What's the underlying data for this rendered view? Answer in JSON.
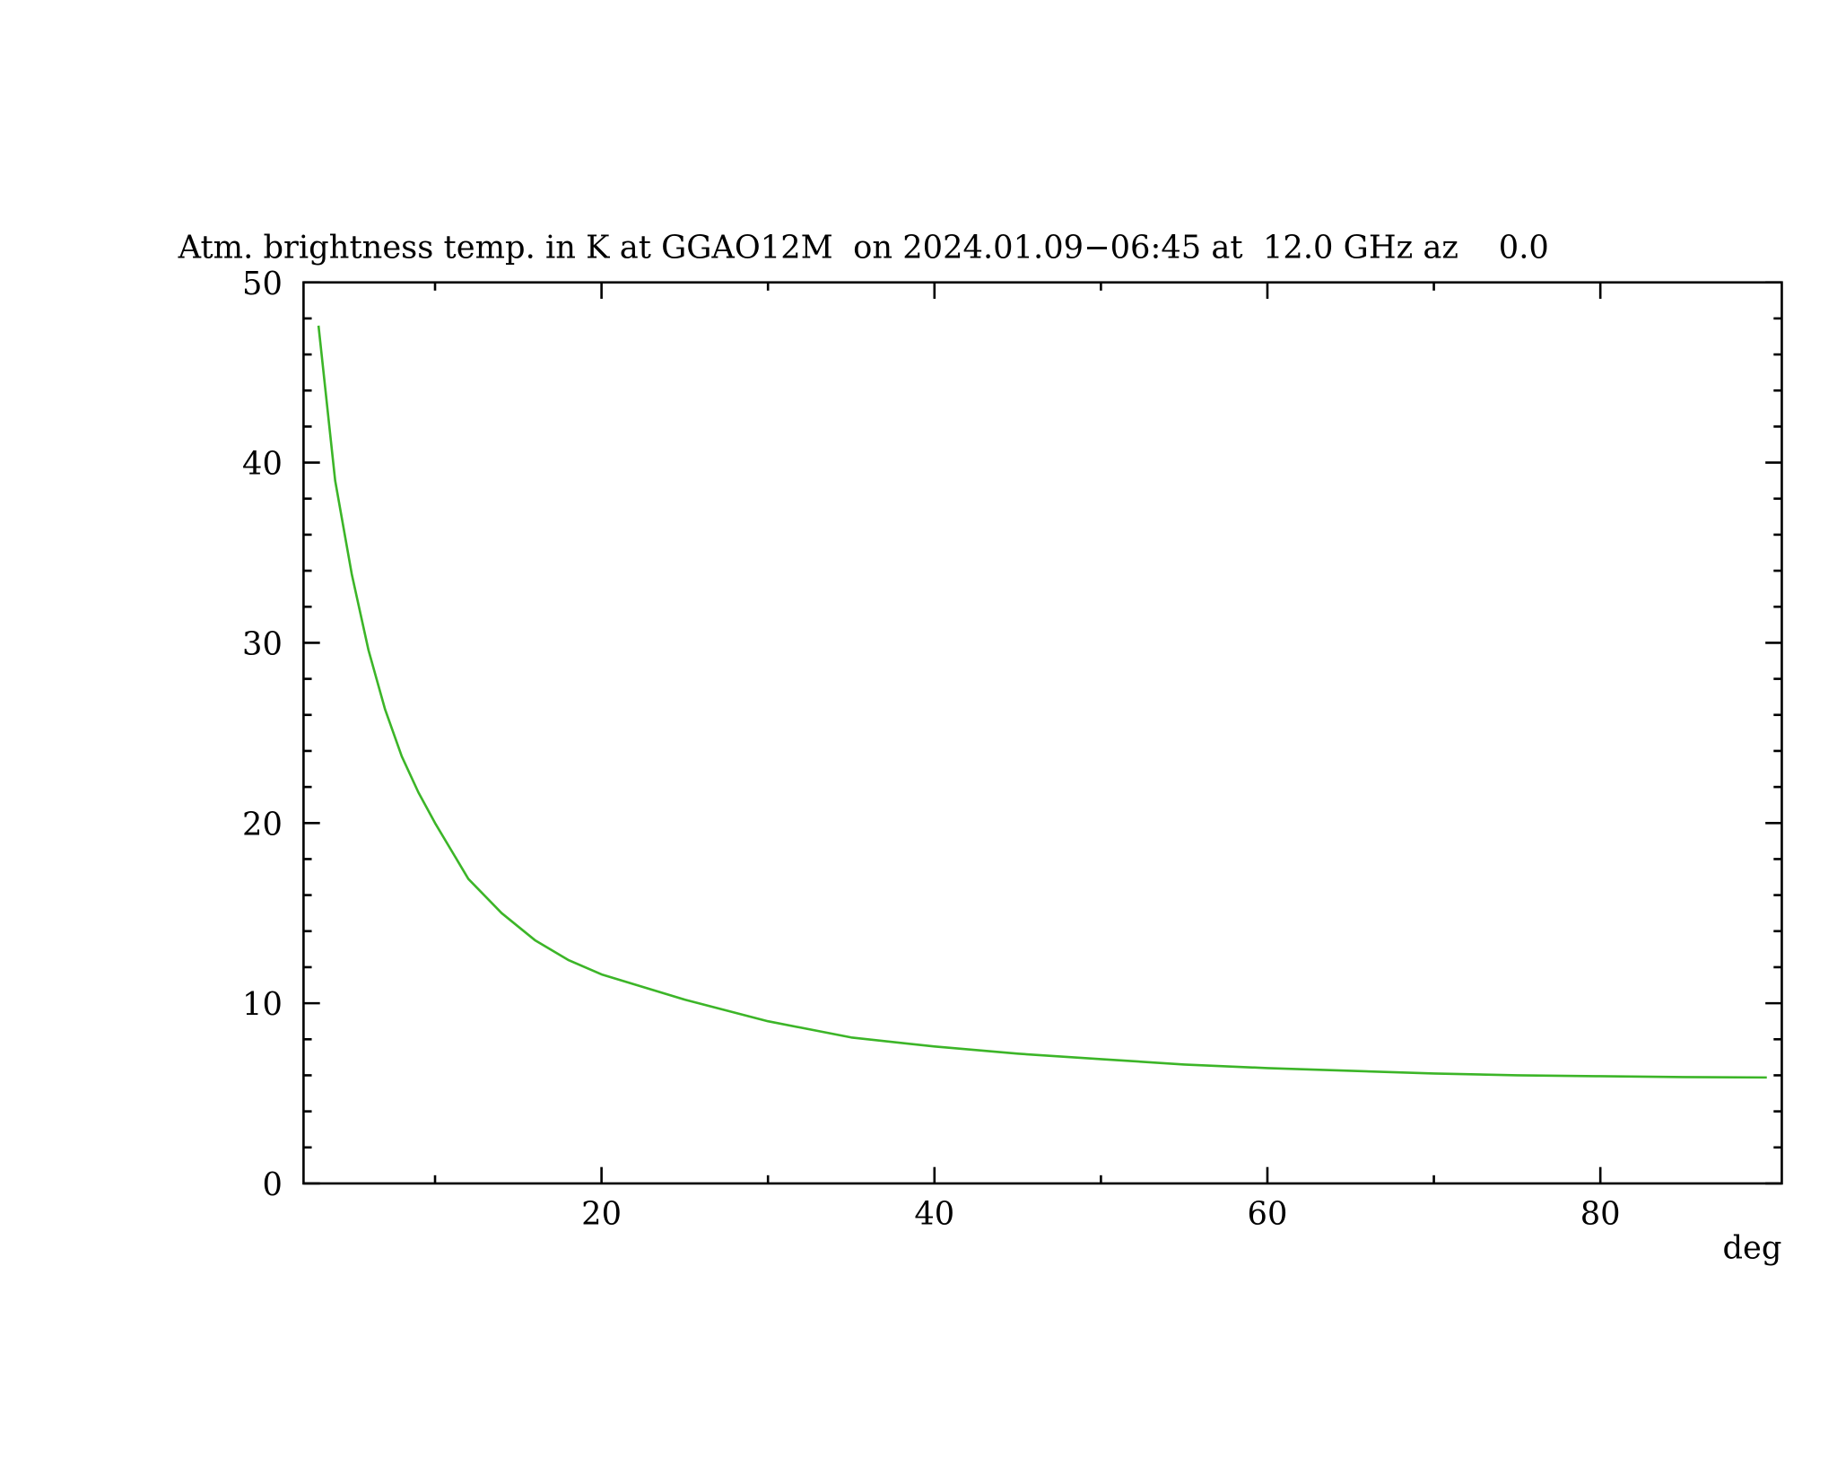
{
  "chart_data": {
    "type": "line",
    "title": "Atm. brightness temp. in K at GGAO12M  on 2024.01.09−06:45 at  12.0 GHz az    0.0",
    "x_label": "deg",
    "x": [
      3,
      4,
      5,
      6,
      7,
      8,
      9,
      10,
      12,
      14,
      16,
      18,
      20,
      25,
      30,
      35,
      40,
      45,
      50,
      55,
      60,
      65,
      70,
      75,
      80,
      85,
      90
    ],
    "series": [
      {
        "color": "#3cb528",
        "values": [
          47.6,
          39.0,
          33.8,
          29.6,
          26.3,
          23.7,
          21.7,
          20.0,
          16.9,
          15.0,
          13.5,
          12.4,
          11.6,
          10.2,
          9.0,
          8.1,
          7.6,
          7.2,
          6.9,
          6.6,
          6.4,
          6.25,
          6.1,
          6.0,
          5.95,
          5.9,
          5.88
        ]
      }
    ],
    "xlim": [
      2.1,
      90.9
    ],
    "xticks": [
      20,
      40,
      60,
      80
    ],
    "xminorticks": [
      10,
      30,
      50,
      70
    ],
    "ylim": [
      0,
      50
    ],
    "yticks": [
      0,
      10,
      20,
      30,
      40,
      50
    ],
    "yminorticks": [
      2,
      4,
      6,
      8,
      12,
      14,
      16,
      18,
      22,
      24,
      26,
      28,
      32,
      34,
      36,
      38,
      42,
      44,
      46,
      48
    ]
  }
}
